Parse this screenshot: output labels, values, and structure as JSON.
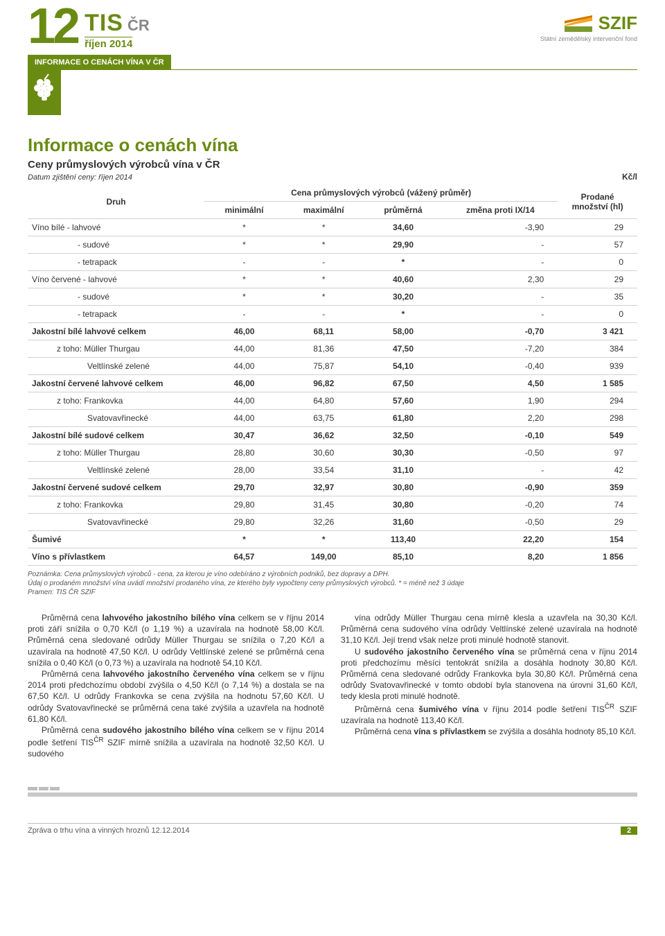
{
  "header": {
    "issue_number": "12",
    "tis": "TIS",
    "cr": "ČR",
    "month_line": "říjen 2014",
    "tab_label": "INFORMACE O CENÁCH VÍNA V ČR",
    "szif": "SZIF",
    "szif_sub": "Státní zemědělský intervenční fond"
  },
  "title": "Informace o cenách vína",
  "subtitle": "Ceny průmyslových výrobců vína v ČR",
  "date_line": "Datum zjištění ceny: říjen 2014",
  "unit": "Kč/l",
  "table": {
    "col_group": "Cena průmyslových výrobců (vážený průměr)",
    "col_last": "Prodané množství (hl)",
    "cols": [
      "Druh",
      "minimální",
      "maximální",
      "průměrná",
      "změna proti IX/14"
    ],
    "rows": [
      {
        "label": "Víno bílé      - lahvové",
        "cells": [
          "*",
          "*",
          "34,60",
          "-3,90",
          "29"
        ],
        "bold": false,
        "indent": 0
      },
      {
        "label": "- sudové",
        "cells": [
          "*",
          "*",
          "29,90",
          "-",
          "57"
        ],
        "bold": false,
        "indent": 1
      },
      {
        "label": "- tetrapack",
        "cells": [
          "-",
          "-",
          "*",
          "-",
          "0"
        ],
        "bold": false,
        "indent": 1
      },
      {
        "label": "Víno červené - lahvové",
        "cells": [
          "*",
          "*",
          "40,60",
          "2,30",
          "29"
        ],
        "bold": false,
        "indent": 0
      },
      {
        "label": "- sudové",
        "cells": [
          "*",
          "*",
          "30,20",
          "-",
          "35"
        ],
        "bold": false,
        "indent": 1
      },
      {
        "label": "- tetrapack",
        "cells": [
          "-",
          "-",
          "*",
          "-",
          "0"
        ],
        "bold": false,
        "indent": 1
      },
      {
        "label": "Jakostní bílé lahvové celkem",
        "cells": [
          "46,00",
          "68,11",
          "58,00",
          "-0,70",
          "3 421"
        ],
        "bold": true,
        "indent": 0
      },
      {
        "label": "z toho: Müller Thurgau",
        "cells": [
          "44,00",
          "81,36",
          "47,50",
          "-7,20",
          "384"
        ],
        "bold": false,
        "indent": 2
      },
      {
        "label": "Veltlínské zelené",
        "cells": [
          "44,00",
          "75,87",
          "54,10",
          "-0,40",
          "939"
        ],
        "bold": false,
        "indent": 3
      },
      {
        "label": "Jakostní červené lahvové celkem",
        "cells": [
          "46,00",
          "96,82",
          "67,50",
          "4,50",
          "1 585"
        ],
        "bold": true,
        "indent": 0
      },
      {
        "label": "z toho: Frankovka",
        "cells": [
          "44,00",
          "64,80",
          "57,60",
          "1,90",
          "294"
        ],
        "bold": false,
        "indent": 2
      },
      {
        "label": "Svatovavřinecké",
        "cells": [
          "44,00",
          "63,75",
          "61,80",
          "2,20",
          "298"
        ],
        "bold": false,
        "indent": 3
      },
      {
        "label": "Jakostní bílé sudové celkem",
        "cells": [
          "30,47",
          "36,62",
          "32,50",
          "-0,10",
          "549"
        ],
        "bold": true,
        "indent": 0
      },
      {
        "label": "z toho: Müller Thurgau",
        "cells": [
          "28,80",
          "30,60",
          "30,30",
          "-0,50",
          "97"
        ],
        "bold": false,
        "indent": 2
      },
      {
        "label": "Veltlínské zelené",
        "cells": [
          "28,00",
          "33,54",
          "31,10",
          "-",
          "42"
        ],
        "bold": false,
        "indent": 3
      },
      {
        "label": "Jakostní červené sudové celkem",
        "cells": [
          "29,70",
          "32,97",
          "30,80",
          "-0,90",
          "359"
        ],
        "bold": true,
        "indent": 0
      },
      {
        "label": "z toho: Frankovka",
        "cells": [
          "29,80",
          "31,45",
          "30,80",
          "-0,20",
          "74"
        ],
        "bold": false,
        "indent": 2
      },
      {
        "label": "Svatovavřinecké",
        "cells": [
          "29,80",
          "32,26",
          "31,60",
          "-0,50",
          "29"
        ],
        "bold": false,
        "indent": 3
      },
      {
        "label": "Šumivé",
        "cells": [
          "*",
          "*",
          "113,40",
          "22,20",
          "154"
        ],
        "bold": true,
        "indent": 0
      },
      {
        "label": "Víno s přívlastkem",
        "cells": [
          "64,57",
          "149,00",
          "85,10",
          "8,20",
          "1 856"
        ],
        "bold": true,
        "indent": 0
      }
    ]
  },
  "footnote_lines": [
    "Poznámka: Cena průmyslových výrobců - cena, za kterou je víno odebíráno z výrobních podniků, bez dopravy a DPH.",
    "Údaj o prodaném množství vína uvádí množství prodaného vína, ze kterého byly vypočteny ceny průmyslových výrobců. * = méně než 3 údaje",
    "Pramen: TIS ČR SZIF"
  ],
  "col_left": [
    "Průměrná cena <b>lahvového jakostního bílého vína</b> celkem se v říjnu 2014 proti září snížila o 0,70 Kč/l (o 1,19 %) a uzavírala na hodnotě 58,00 Kč/l. Průměrná cena sledované odrůdy Müller Thurgau se snížila o 7,20 Kč/l a uzavírala na hodnotě 47,50 Kč/l. U odrůdy Veltlínské zelené se průměrná cena snížila o 0,40 Kč/l (o 0,73 %) a uzavírala na hodnotě 54,10 Kč/l.",
    "Průměrná cena <b>lahvového jakostního červeného vína</b> celkem se v říjnu 2014 proti předchozímu období zvýšila o 4,50 Kč/l (o 7,14 %) a dostala se na 67,50 Kč/l. U odrůdy Frankovka se cena zvýšila na hodnotu 57,60 Kč/l. U odrůdy Svatovavřinecké se průměrná cena také zvýšila a uzavřela na hodnotě 61,80 Kč/l.",
    "Průměrná cena <b>sudového jakostního bílého vína</b> celkem se v říjnu 2014 podle šetření TIS<sup>ČR</sup> SZIF mírně snížila a uzavírala na hodnotě 32,50 Kč/l. U sudového"
  ],
  "col_right": [
    "vína odrůdy Müller Thurgau cena mírně klesla a uzavřela na 30,30 Kč/l. Průměrná cena sudového vína odrůdy Veltlínské zelené uzavírala na hodnotě 31,10 Kč/l. Její trend však nelze proti minulé hodnotě stanovit.",
    "U <b>sudového jakostního červeného vína</b> se průměrná cena v říjnu 2014 proti předchozímu měsíci tentokrát snížila a dosáhla hodnoty 30,80 Kč/l. Průměrná cena sledované odrůdy Frankovka byla 30,80 Kč/l. Průměrná cena odrůdy Svatovavřinecké v tomto období byla stanovena na úrovni 31,60 Kč/l, tedy klesla proti minulé hodnotě.",
    "Průměrná cena <b>šumivého vína</b> v říjnu 2014 podle šetření TIS<sup>ČR</sup> SZIF uzavírala na hodnotě 113,40 Kč/l.",
    "Průměrná cena <b>vína s přívlastkem</b> se zvýšila a dosáhla hodnoty 85,10 Kč/l."
  ],
  "footer": {
    "left": "Zpráva o trhu vína a vinných hroznů 12.12.2014",
    "page": "2"
  }
}
